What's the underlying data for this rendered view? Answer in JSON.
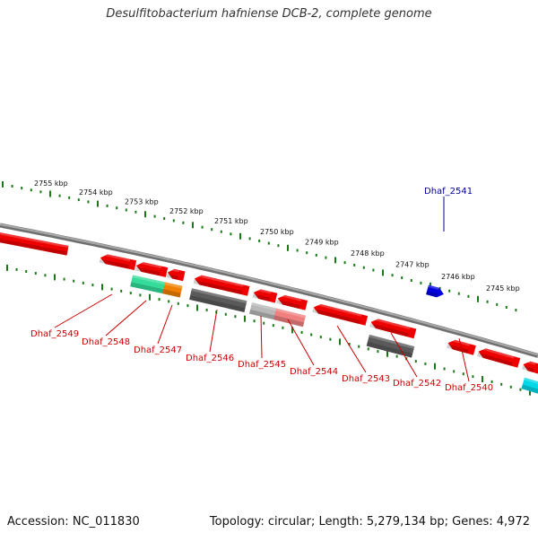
{
  "title": "Desulfitobacterium hafniense DCB-2, complete genome",
  "footer": {
    "accession": "Accession: NC_011830",
    "stats": "Topology: circular; Length: 5,279,134 bp; Genes: 4,972"
  },
  "ruler_ticks": [
    "2755 kbp",
    "2754 kbp",
    "2753 kbp",
    "2752 kbp",
    "2751 kbp",
    "2750 kbp",
    "2749 kbp",
    "2748 kbp",
    "2747 kbp",
    "2746 kbp",
    "2745 kbp"
  ],
  "colors": {
    "backbone": "#8a8a8a",
    "tick_green": "#1a7a1a",
    "gene_red": "#ee0000",
    "gene_blue": "#0000dd",
    "gene_dark": "#5a5a5a",
    "gene_light": "#b8b8b8",
    "gene_pink": "#f08080",
    "gene_mint": "#33dd99",
    "gene_orange": "#f08000",
    "gene_cyan": "#00d8e8",
    "label_red": "#cc0000",
    "label_blue": "#000099"
  },
  "genes": [
    {
      "id": "g1",
      "color": "#ee0000"
    },
    {
      "id": "g2",
      "color": "#ee0000"
    },
    {
      "id": "g3",
      "color": "#ee0000"
    },
    {
      "id": "g4",
      "color": "#ee0000"
    },
    {
      "id": "g5",
      "color": "#ee0000"
    },
    {
      "id": "g6",
      "color": "#ee0000"
    },
    {
      "id": "g7",
      "color": "#ee0000"
    },
    {
      "id": "g8",
      "color": "#ee0000"
    },
    {
      "id": "g9",
      "color": "#ee0000"
    },
    {
      "id": "g10",
      "color": "#ee0000"
    },
    {
      "id": "g11",
      "color": "#ee0000"
    },
    {
      "id": "g12",
      "color": "#ee0000"
    },
    {
      "id": "g13",
      "color": "#0000dd"
    },
    {
      "id": "d1",
      "color": "#33dd99"
    },
    {
      "id": "d2",
      "color": "#f08000"
    },
    {
      "id": "d3",
      "color": "#5a5a5a"
    },
    {
      "id": "d4",
      "color": "#b8b8b8"
    },
    {
      "id": "d5",
      "color": "#f08080"
    },
    {
      "id": "d6",
      "color": "#5a5a5a"
    },
    {
      "id": "d7",
      "color": "#00d8e8"
    }
  ],
  "gene_labels": [
    {
      "text": "Dhaf_2549",
      "color": "#cc0000"
    },
    {
      "text": "Dhaf_2548",
      "color": "#cc0000"
    },
    {
      "text": "Dhaf_2547",
      "color": "#cc0000"
    },
    {
      "text": "Dhaf_2546",
      "color": "#cc0000"
    },
    {
      "text": "Dhaf_2545",
      "color": "#cc0000"
    },
    {
      "text": "Dhaf_2544",
      "color": "#cc0000"
    },
    {
      "text": "Dhaf_2543",
      "color": "#cc0000"
    },
    {
      "text": "Dhaf_2542",
      "color": "#cc0000"
    },
    {
      "text": "Dhaf_2540",
      "color": "#cc0000"
    },
    {
      "text": "Dhaf_2541",
      "color": "#000099"
    }
  ]
}
